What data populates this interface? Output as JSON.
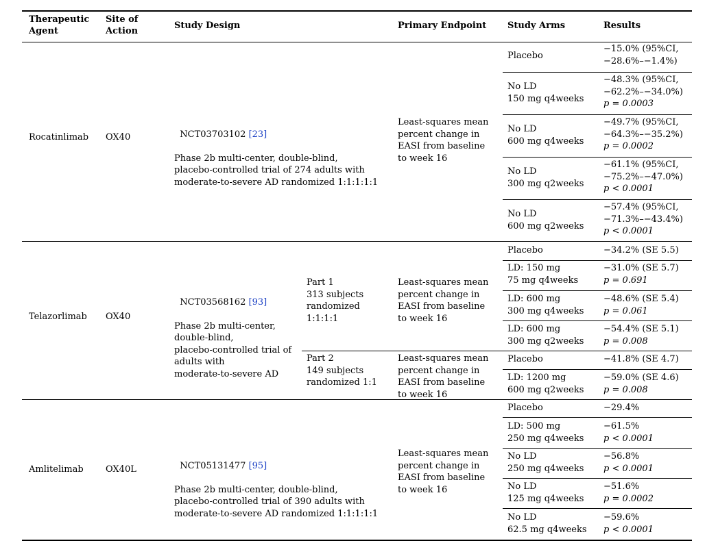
{
  "header": {
    "agent": "Therapeutic\nAgent",
    "site": "Site of\nAction",
    "design": "Study Design",
    "endpoint": "Primary Endpoint",
    "arms": "Study Arms",
    "results": "Results"
  },
  "rows": [
    {
      "agent": "Rocatinlimab",
      "site": "OX40",
      "design_id": "NCT03703102 ",
      "design_ref": "[23]",
      "design_text": "Phase 2b multi-center, double-blind,\nplacebo-controlled trial of 274 adults with\nmoderate-to-severe AD randomized 1:1:1:1:1",
      "endpoint": "Least-squares mean\npercent change in\nEASI from baseline\nto week 16",
      "arms": [
        {
          "arm": "Placebo",
          "result": "−15.0% (95%CI,\n−28.6%–−1.4%)",
          "p": ""
        },
        {
          "arm": "No LD\n150 mg q4weeks",
          "result": "−48.3% (95%CI,\n−62.2%–−34.0%)",
          "p": "p = 0.0003"
        },
        {
          "arm": "No LD\n600 mg q4weeks",
          "result": "−49.7% (95%CI,\n−64.3%–−35.2%)",
          "p": "p = 0.0002"
        },
        {
          "arm": "No LD\n300 mg q2weeks",
          "result": "−61.1% (95%CI,\n−75.2%–−47.0%)",
          "p": "p < 0.0001"
        },
        {
          "arm": "No LD\n600 mg q2weeks",
          "result": "−57.4% (95%CI,\n−71.3%–−43.4%)",
          "p": "p < 0.0001"
        }
      ]
    },
    {
      "agent": "Telazorlimab",
      "site": "OX40",
      "design_id": "NCT03568162 ",
      "design_ref": "[93]",
      "design_text": "Phase 2b multi-center,\ndouble-blind,\nplacebo-controlled trial of\nadults with\nmoderate-to-severe AD",
      "parts": [
        {
          "part": "Part 1\n313 subjects\nrandomized\n1:1:1:1",
          "endpoint": "Least-squares mean\npercent change in\nEASI from baseline\nto week 16",
          "arms": [
            {
              "arm": "Placebo",
              "result": "−34.2% (SE 5.5)",
              "p": ""
            },
            {
              "arm": "LD: 150 mg\n75 mg q4weeks",
              "result": "−31.0% (SE 5.7)",
              "p": "p = 0.691"
            },
            {
              "arm": "LD: 600 mg\n300 mg q4weeks",
              "result": "−48.6% (SE 5.4)",
              "p": "p = 0.061"
            },
            {
              "arm": "LD: 600 mg\n300 mg q2weeks",
              "result": "−54.4% (SE 5.1)",
              "p": "p = 0.008"
            }
          ]
        },
        {
          "part": "Part 2\n149 subjects\nrandomized 1:1",
          "endpoint": "Least-squares mean\npercent change in\nEASI from baseline\nto week 16",
          "arms": [
            {
              "arm": "Placebo",
              "result": "−41.8% (SE 4.7)",
              "p": ""
            },
            {
              "arm": "LD: 1200 mg\n600 mg q2weeks",
              "result": "−59.0% (SE 4.6)",
              "p": "p = 0.008"
            }
          ]
        }
      ]
    },
    {
      "agent": "Amlitelimab",
      "site": "OX40L",
      "design_id": "NCT05131477 ",
      "design_ref": "[95]",
      "design_text": "Phase 2b multi-center, double-blind,\nplacebo-controlled trial of 390 adults with\nmoderate-to-severe AD randomized 1:1:1:1:1",
      "endpoint": "Least-squares mean\npercent change in\nEASI from baseline\nto week 16",
      "arms": [
        {
          "arm": "Placebo",
          "result": "−29.4%",
          "p": ""
        },
        {
          "arm": "LD: 500 mg\n250 mg q4weeks",
          "result": "−61.5%",
          "p": "p < 0.0001"
        },
        {
          "arm": "No LD\n250 mg q4weeks",
          "result": "−56.8%",
          "p": "p < 0.0001"
        },
        {
          "arm": "No LD\n125 mg q4weeks",
          "result": "−51.6%",
          "p": "p = 0.0002"
        },
        {
          "arm": "No LD\n62.5 mg q4weeks",
          "result": "−59.6%",
          "p": "p < 0.0001"
        }
      ]
    }
  ]
}
